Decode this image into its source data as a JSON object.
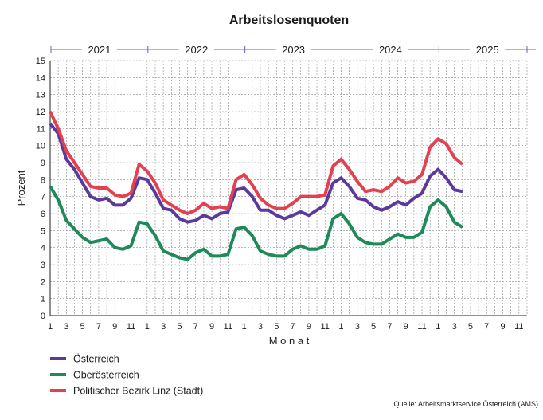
{
  "chart_data": {
    "type": "line",
    "title": "Arbeitslosenquoten",
    "xlabel": "M o n a t",
    "ylabel": "Prozent",
    "ylim": [
      0,
      15
    ],
    "yticks": [
      0,
      1,
      2,
      3,
      4,
      5,
      6,
      7,
      8,
      9,
      10,
      11,
      12,
      13,
      14,
      15
    ],
    "grid": true,
    "years": [
      "2021",
      "2022",
      "2023",
      "2024",
      "2025"
    ],
    "x_tick_labels": [
      "1",
      "3",
      "5",
      "7",
      "9",
      "11",
      "1",
      "3",
      "5",
      "7",
      "9",
      "11",
      "1",
      "3",
      "5",
      "7",
      "9",
      "11",
      "1",
      "3",
      "5",
      "7",
      "9",
      "11",
      "1",
      "3",
      "5",
      "7",
      "9",
      "11"
    ],
    "months_total": 60,
    "series": [
      {
        "name": "Österreich",
        "color": "#5b3a9e",
        "values": [
          11.3,
          10.7,
          9.2,
          8.6,
          7.8,
          7.0,
          6.8,
          6.9,
          6.5,
          6.5,
          6.9,
          8.1,
          8.0,
          7.2,
          6.3,
          6.2,
          5.7,
          5.5,
          5.6,
          5.9,
          5.7,
          6.0,
          6.1,
          7.4,
          7.5,
          7.0,
          6.2,
          6.2,
          5.9,
          5.7,
          5.9,
          6.1,
          5.9,
          6.2,
          6.5,
          7.8,
          8.1,
          7.6,
          6.9,
          6.8,
          6.4,
          6.2,
          6.4,
          6.7,
          6.5,
          6.9,
          7.2,
          8.2,
          8.6,
          8.1,
          7.4,
          7.3
        ]
      },
      {
        "name": "Oberösterreich",
        "color": "#1e8a5a",
        "values": [
          7.6,
          6.8,
          5.6,
          5.1,
          4.6,
          4.3,
          4.4,
          4.5,
          4.0,
          3.9,
          4.1,
          5.5,
          5.4,
          4.7,
          3.8,
          3.6,
          3.4,
          3.3,
          3.7,
          3.9,
          3.5,
          3.5,
          3.6,
          5.1,
          5.2,
          4.7,
          3.8,
          3.6,
          3.5,
          3.5,
          3.9,
          4.1,
          3.9,
          3.9,
          4.1,
          5.7,
          6.0,
          5.4,
          4.6,
          4.3,
          4.2,
          4.2,
          4.5,
          4.8,
          4.6,
          4.6,
          4.9,
          6.4,
          6.8,
          6.4,
          5.5,
          5.2
        ]
      },
      {
        "name": "Politischer Bezirk Linz (Stadt)",
        "color": "#e34050",
        "values": [
          12.0,
          11.0,
          9.7,
          9.0,
          8.3,
          7.6,
          7.5,
          7.5,
          7.1,
          7.0,
          7.2,
          8.9,
          8.5,
          7.8,
          6.8,
          6.5,
          6.2,
          6.0,
          6.2,
          6.6,
          6.3,
          6.4,
          6.3,
          8.0,
          8.3,
          7.7,
          6.9,
          6.5,
          6.3,
          6.3,
          6.6,
          7.0,
          7.0,
          7.0,
          7.1,
          8.8,
          9.2,
          8.6,
          7.9,
          7.3,
          7.4,
          7.3,
          7.6,
          8.1,
          7.8,
          7.9,
          8.3,
          9.9,
          10.4,
          10.1,
          9.3,
          8.9
        ]
      }
    ],
    "legend_position": "bottom-left"
  },
  "source": "Quelle: Arbeitsmarktservice Österreich (AMS)"
}
